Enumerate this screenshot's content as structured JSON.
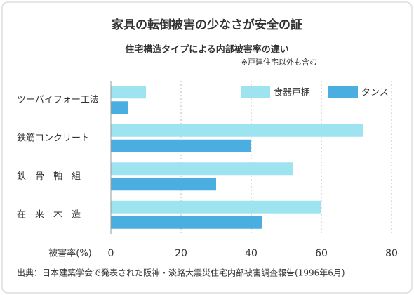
{
  "chart_data": {
    "type": "bar",
    "orientation": "horizontal",
    "title": "家具の転倒被害の少なさが安全の証",
    "subtitle": "住宅構造タイプによる内部被害率の違い",
    "note": "※戸建住宅以外も含む",
    "xlabel": "被害率(%)",
    "source": "出典：日本建築学会で発表された阪神・淡路大震災住宅内部被害調査報告(1996年6月)",
    "categories": [
      "ツーバイフォー工法",
      "鉄筋コンクリート",
      "鉄　骨　軸　組",
      "在　来　木　造"
    ],
    "series": [
      {
        "name": "食器戸棚",
        "color": "#9de3f0",
        "values": [
          10,
          72,
          52,
          60
        ]
      },
      {
        "name": "タンス",
        "color": "#4aaee0",
        "values": [
          5,
          40,
          30,
          43
        ]
      }
    ],
    "xlim": [
      0,
      80
    ],
    "xticks": [
      0,
      20,
      40,
      60,
      80
    ],
    "grid": true,
    "legend": "top-right"
  }
}
